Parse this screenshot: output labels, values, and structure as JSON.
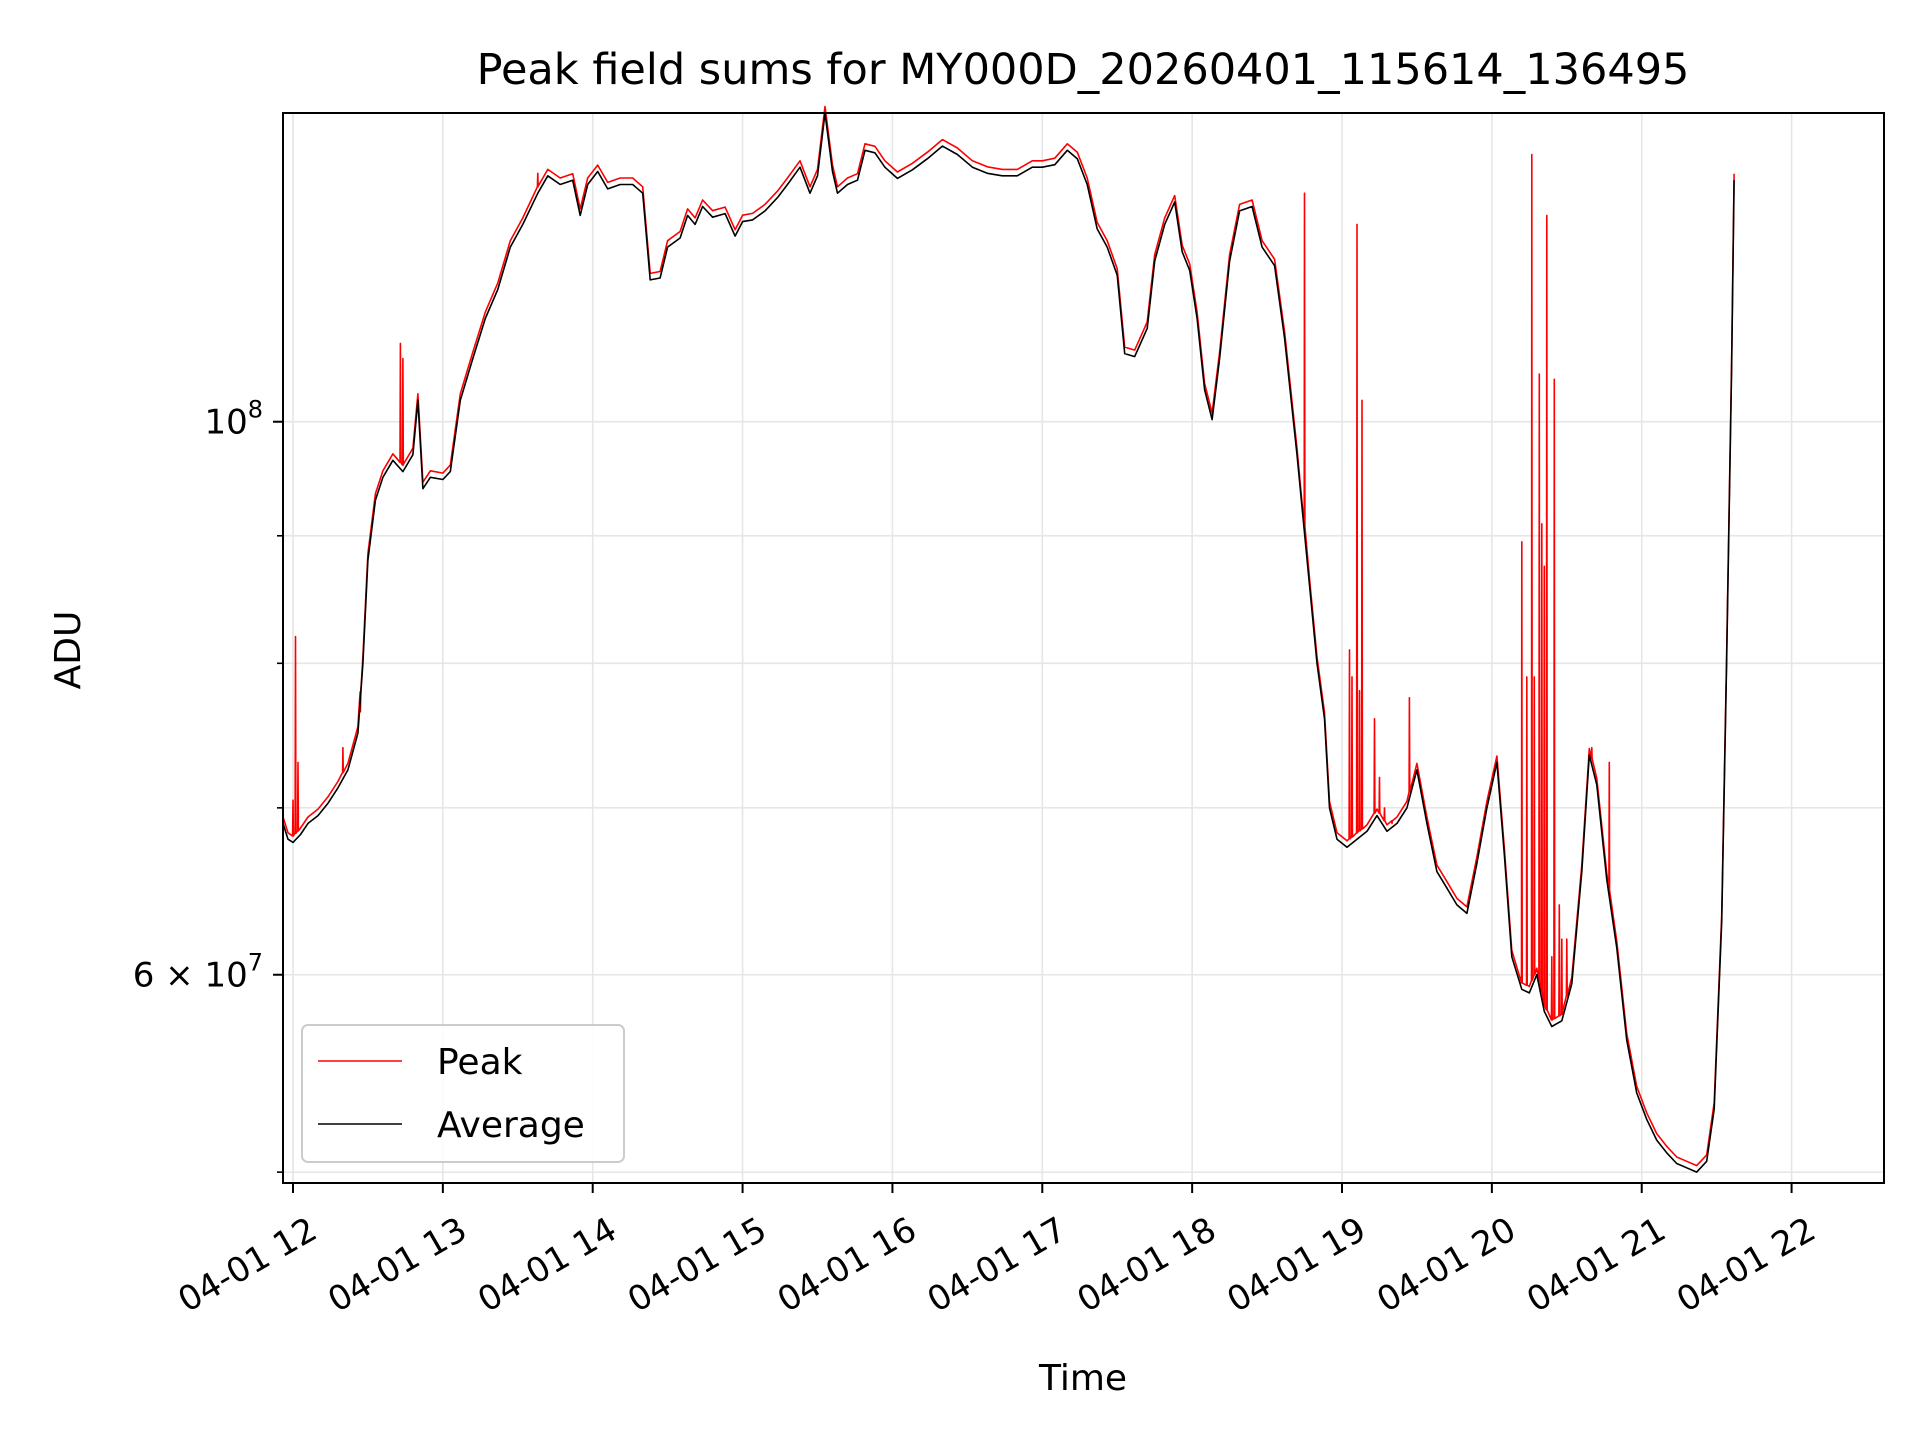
{
  "chart_data": {
    "type": "line",
    "title": "Peak field sums for MY000D_20260401_115614_136495",
    "xlabel": "Time",
    "ylabel": "ADU",
    "y_scale": "log",
    "ylim": [
      49500000,
      133000000
    ],
    "xlim": [
      "04-01 11:56",
      "04-01 22:37"
    ],
    "grid": true,
    "legend_position": "lower-left",
    "x_ticks": [
      "04-01 12",
      "04-01 13",
      "04-01 14",
      "04-01 15",
      "04-01 16",
      "04-01 17",
      "04-01 18",
      "04-01 19",
      "04-01 20",
      "04-01 21",
      "04-01 22"
    ],
    "y_ticks": [
      {
        "value": 100000000,
        "label_base": "10",
        "label_exp": "8"
      },
      {
        "value": 60000000,
        "label_base": "6 × 10",
        "label_exp": "7"
      }
    ],
    "y_minor_ticks": [
      50000000,
      70000000,
      80000000,
      90000000
    ],
    "average_points": [
      [
        "04-01 11:56",
        69000000
      ],
      [
        "04-01 11:58",
        68000000
      ],
      [
        "04-01 12:00",
        67800000
      ],
      [
        "04-01 12:03",
        68300000
      ],
      [
        "04-01 12:06",
        69000000
      ],
      [
        "04-01 12:10",
        69500000
      ],
      [
        "04-01 12:14",
        70300000
      ],
      [
        "04-01 12:18",
        71300000
      ],
      [
        "04-01 12:22",
        72500000
      ],
      [
        "04-01 12:26",
        75000000
      ],
      [
        "04-01 12:28",
        80000000
      ],
      [
        "04-01 12:30",
        88000000
      ],
      [
        "04-01 12:33",
        93000000
      ],
      [
        "04-01 12:36",
        95000000
      ],
      [
        "04-01 12:40",
        96500000
      ],
      [
        "04-01 12:44",
        95500000
      ],
      [
        "04-01 12:48",
        97000000
      ],
      [
        "04-01 12:50",
        102000000
      ],
      [
        "04-01 12:52",
        94000000
      ],
      [
        "04-01 12:55",
        95000000
      ],
      [
        "04-01 13:00",
        94800000
      ],
      [
        "04-01 13:03",
        95500000
      ],
      [
        "04-01 13:07",
        102000000
      ],
      [
        "04-01 13:12",
        106000000
      ],
      [
        "04-01 13:17",
        110000000
      ],
      [
        "04-01 13:22",
        113000000
      ],
      [
        "04-01 13:27",
        117500000
      ],
      [
        "04-01 13:32",
        120000000
      ],
      [
        "04-01 13:38",
        123500000
      ],
      [
        "04-01 13:42",
        125500000
      ],
      [
        "04-01 13:47",
        124500000
      ],
      [
        "04-01 13:52",
        125000000
      ],
      [
        "04-01 13:55",
        121000000
      ],
      [
        "04-01 13:58",
        124500000
      ],
      [
        "04-01 14:02",
        126000000
      ],
      [
        "04-01 14:06",
        124000000
      ],
      [
        "04-01 14:11",
        124500000
      ],
      [
        "04-01 14:16",
        124500000
      ],
      [
        "04-01 14:20",
        123500000
      ],
      [
        "04-01 14:23",
        114000000
      ],
      [
        "04-01 14:27",
        114200000
      ],
      [
        "04-01 14:30",
        117500000
      ],
      [
        "04-01 14:35",
        118500000
      ],
      [
        "04-01 14:38",
        121000000
      ],
      [
        "04-01 14:41",
        120000000
      ],
      [
        "04-01 14:44",
        122000000
      ],
      [
        "04-01 14:48",
        120800000
      ],
      [
        "04-01 14:53",
        121200000
      ],
      [
        "04-01 14:57",
        118700000
      ],
      [
        "04-01 15:00",
        120300000
      ],
      [
        "04-01 15:04",
        120500000
      ],
      [
        "04-01 15:09",
        121500000
      ],
      [
        "04-01 15:14",
        123000000
      ],
      [
        "04-01 15:18",
        124500000
      ],
      [
        "04-01 15:23",
        126500000
      ],
      [
        "04-01 15:27",
        123500000
      ],
      [
        "04-01 15:30",
        125500000
      ],
      [
        "04-01 15:33",
        133000000
      ],
      [
        "04-01 15:36",
        126000000
      ],
      [
        "04-01 15:38",
        123500000
      ],
      [
        "04-01 15:42",
        124500000
      ],
      [
        "04-01 15:46",
        125000000
      ],
      [
        "04-01 15:49",
        128500000
      ],
      [
        "04-01 15:53",
        128200000
      ],
      [
        "04-01 15:57",
        126500000
      ],
      [
        "04-01 16:02",
        125200000
      ],
      [
        "04-01 16:08",
        126200000
      ],
      [
        "04-01 16:14",
        127500000
      ],
      [
        "04-01 16:20",
        129000000
      ],
      [
        "04-01 16:26",
        128000000
      ],
      [
        "04-01 16:32",
        126500000
      ],
      [
        "04-01 16:38",
        125800000
      ],
      [
        "04-01 16:44",
        125500000
      ],
      [
        "04-01 16:50",
        125500000
      ],
      [
        "04-01 16:56",
        126500000
      ],
      [
        "04-01 17:00",
        126500000
      ],
      [
        "04-01 17:05",
        126800000
      ],
      [
        "04-01 17:10",
        128500000
      ],
      [
        "04-01 17:14",
        127500000
      ],
      [
        "04-01 17:18",
        124500000
      ],
      [
        "04-01 17:22",
        119500000
      ],
      [
        "04-01 17:26",
        117500000
      ],
      [
        "04-01 17:30",
        114500000
      ],
      [
        "04-01 17:33",
        106500000
      ],
      [
        "04-01 17:37",
        106200000
      ],
      [
        "04-01 17:42",
        109000000
      ],
      [
        "04-01 17:45",
        116000000
      ],
      [
        "04-01 17:49",
        120000000
      ],
      [
        "04-01 17:53",
        122500000
      ],
      [
        "04-01 17:56",
        117000000
      ],
      [
        "04-01 17:59",
        115000000
      ],
      [
        "04-01 18:02",
        110000000
      ],
      [
        "04-01 18:05",
        103000000
      ],
      [
        "04-01 18:08",
        100200000
      ],
      [
        "04-01 18:11",
        106000000
      ],
      [
        "04-01 18:15",
        116000000
      ],
      [
        "04-01 18:19",
        121500000
      ],
      [
        "04-01 18:24",
        122000000
      ],
      [
        "04-01 18:28",
        117500000
      ],
      [
        "04-01 18:33",
        115500000
      ],
      [
        "04-01 18:37",
        108000000
      ],
      [
        "04-01 18:42",
        97000000
      ],
      [
        "04-01 18:47",
        86000000
      ],
      [
        "04-01 18:50",
        80000000
      ],
      [
        "04-01 18:53",
        76000000
      ],
      [
        "04-01 18:55",
        70000000
      ],
      [
        "04-01 18:58",
        68000000
      ],
      [
        "04-01 19:02",
        67500000
      ],
      [
        "04-01 19:06",
        68000000
      ],
      [
        "04-01 19:10",
        68500000
      ],
      [
        "04-01 19:14",
        69500000
      ],
      [
        "04-01 19:18",
        68500000
      ],
      [
        "04-01 19:22",
        69000000
      ],
      [
        "04-01 19:26",
        70000000
      ],
      [
        "04-01 19:30",
        72500000
      ],
      [
        "04-01 19:34",
        69000000
      ],
      [
        "04-01 19:38",
        66000000
      ],
      [
        "04-01 19:42",
        65000000
      ],
      [
        "04-01 19:46",
        64000000
      ],
      [
        "04-01 19:50",
        63500000
      ],
      [
        "04-01 19:54",
        66500000
      ],
      [
        "04-01 19:58",
        70000000
      ],
      [
        "04-01 20:02",
        73000000
      ],
      [
        "04-01 20:05",
        67000000
      ],
      [
        "04-01 20:08",
        61000000
      ],
      [
        "04-01 20:12",
        59200000
      ],
      [
        "04-01 20:15",
        59000000
      ],
      [
        "04-01 20:18",
        60000000
      ],
      [
        "04-01 20:21",
        58000000
      ],
      [
        "04-01 20:24",
        57200000
      ],
      [
        "04-01 20:28",
        57500000
      ],
      [
        "04-01 20:32",
        59500000
      ],
      [
        "04-01 20:36",
        66000000
      ],
      [
        "04-01 20:39",
        73500000
      ],
      [
        "04-01 20:42",
        71500000
      ],
      [
        "04-01 20:46",
        65500000
      ],
      [
        "04-01 20:50",
        61500000
      ],
      [
        "04-01 20:54",
        56500000
      ],
      [
        "04-01 20:58",
        53800000
      ],
      [
        "04-01 21:02",
        52500000
      ],
      [
        "04-01 21:06",
        51500000
      ],
      [
        "04-01 21:10",
        50900000
      ],
      [
        "04-01 21:14",
        50400000
      ],
      [
        "04-01 21:18",
        50200000
      ],
      [
        "04-01 21:22",
        50000000
      ],
      [
        "04-01 21:26",
        50500000
      ],
      [
        "04-01 21:29",
        53000000
      ],
      [
        "04-01 21:32",
        63000000
      ],
      [
        "04-01 21:34",
        80000000
      ],
      [
        "04-01 21:36",
        105000000
      ],
      [
        "04-01 21:37",
        125000000
      ]
    ],
    "series": [
      {
        "name": "Peak",
        "color": "#ff0000",
        "offset": 1.006,
        "spikes": [
          [
            "04-01 12:01",
            82000000
          ],
          [
            "04-01 12:02",
            73000000
          ],
          [
            "04-01 12:00",
            70500000
          ],
          [
            "04-01 12:20",
            74000000
          ],
          [
            "04-01 12:27",
            76500000
          ],
          [
            "04-01 12:43",
            107500000
          ],
          [
            "04-01 12:44",
            106000000
          ],
          [
            "04-01 13:38",
            125800000
          ],
          [
            "04-01 18:45",
            123500000
          ],
          [
            "04-01 19:03",
            81000000
          ],
          [
            "04-01 19:04",
            79000000
          ],
          [
            "04-01 19:06",
            120000000
          ],
          [
            "04-01 19:07",
            78000000
          ],
          [
            "04-01 19:08",
            102000000
          ],
          [
            "04-01 19:13",
            76000000
          ],
          [
            "04-01 19:15",
            72000000
          ],
          [
            "04-01 19:17",
            70000000
          ],
          [
            "04-01 19:20",
            69000000
          ],
          [
            "04-01 19:27",
            77500000
          ],
          [
            "04-01 20:12",
            89500000
          ],
          [
            "04-01 20:14",
            79000000
          ],
          [
            "04-01 20:16",
            128000000
          ],
          [
            "04-01 20:17",
            79000000
          ],
          [
            "04-01 20:19",
            104500000
          ],
          [
            "04-01 20:20",
            91000000
          ],
          [
            "04-01 20:21",
            87500000
          ],
          [
            "04-01 20:22",
            121000000
          ],
          [
            "04-01 20:24",
            61000000
          ],
          [
            "04-01 20:25",
            104000000
          ],
          [
            "04-01 20:27",
            64000000
          ],
          [
            "04-01 20:28",
            62000000
          ],
          [
            "04-01 20:30",
            62000000
          ],
          [
            "04-01 20:40",
            74000000
          ],
          [
            "04-01 20:47",
            73000000
          ]
        ]
      },
      {
        "name": "Average",
        "color": "#000000",
        "offset": 1.0,
        "spikes": []
      }
    ]
  }
}
